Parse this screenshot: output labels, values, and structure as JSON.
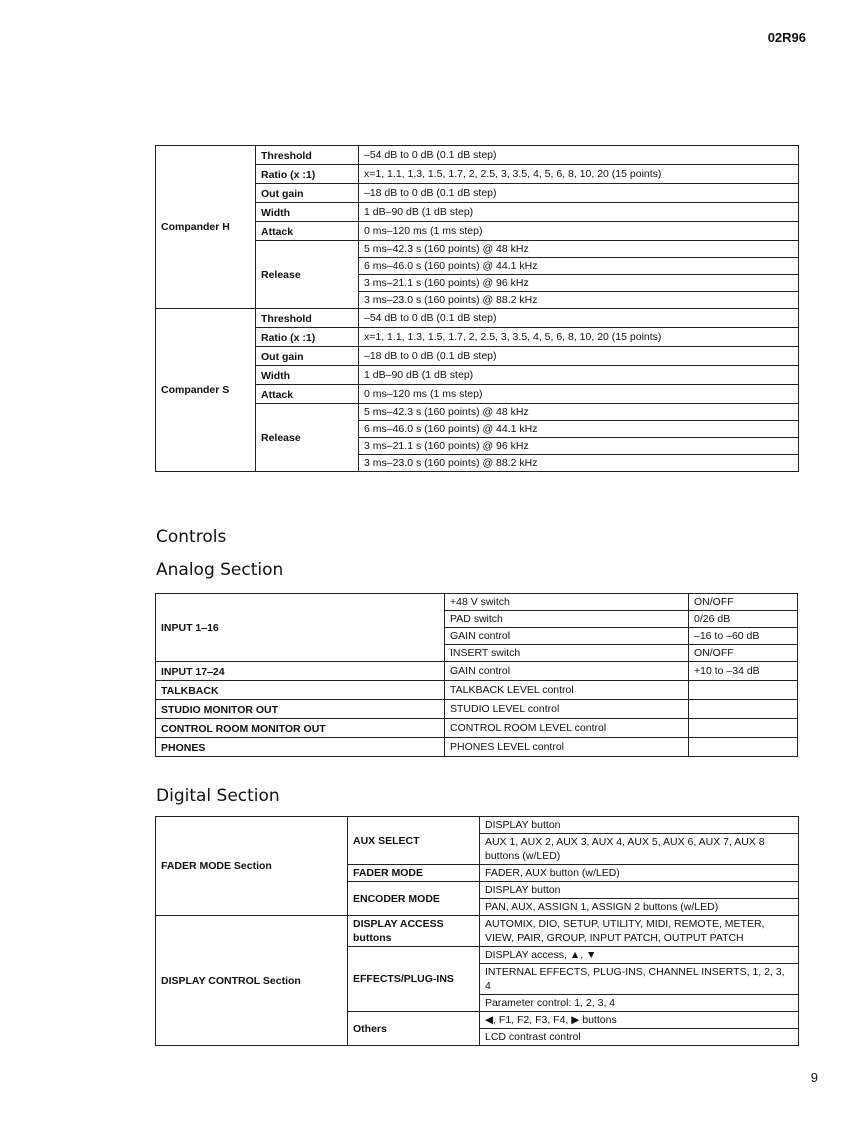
{
  "header": {
    "model": "02R96"
  },
  "page_number": "9",
  "compander": [
    {
      "name": "Compander H",
      "params": [
        {
          "label": "Threshold",
          "values": [
            "‒54 dB to 0 dB (0.1 dB step)"
          ]
        },
        {
          "label": "Ratio (x :1)",
          "values": [
            "x=1, 1.1, 1.3, 1.5, 1.7, 2, 2.5, 3, 3.5, 4, 5, 6, 8, 10, 20 (15 points)"
          ]
        },
        {
          "label": "Out gain",
          "values": [
            "‒18 dB to 0 dB (0.1 dB step)"
          ]
        },
        {
          "label": "Width",
          "values": [
            "1 dB‒90 dB (1 dB step)"
          ]
        },
        {
          "label": "Attack",
          "values": [
            "0 ms‒120 ms (1 ms step)"
          ]
        },
        {
          "label": "Release",
          "values": [
            "5 ms‒42.3 s (160 points) @ 48 kHz",
            "6 ms‒46.0 s (160 points) @ 44.1 kHz",
            "3 ms‒21.1 s (160 points) @ 96 kHz",
            "3 ms‒23.0 s (160 points) @ 88.2 kHz"
          ]
        }
      ]
    },
    {
      "name": "Compander S",
      "params": [
        {
          "label": "Threshold",
          "values": [
            "‒54 dB to 0 dB (0.1 dB step)"
          ]
        },
        {
          "label": "Ratio (x :1)",
          "values": [
            "x=1, 1.1, 1.3, 1.5, 1.7, 2, 2.5, 3, 3.5, 4, 5, 6, 8, 10, 20 (15 points)"
          ]
        },
        {
          "label": "Out gain",
          "values": [
            "‒18 dB to 0 dB (0.1 dB step)"
          ]
        },
        {
          "label": "Width",
          "values": [
            "1 dB‒90 dB (1 dB step)"
          ]
        },
        {
          "label": "Attack",
          "values": [
            "0 ms‒120 ms (1 ms step)"
          ]
        },
        {
          "label": "Release",
          "values": [
            "5 ms‒42.3 s (160 points) @ 48 kHz",
            "6 ms‒46.0 s (160 points) @ 44.1 kHz",
            "3 ms‒21.1 s (160 points) @ 96 kHz",
            "3 ms‒23.0 s (160 points) @ 88.2 kHz"
          ]
        }
      ]
    }
  ],
  "headings": {
    "controls": "Controls",
    "analog": "Analog Section",
    "digital": "Digital Section"
  },
  "analog": [
    {
      "label": "INPUT 1‒16",
      "items": [
        {
          "control": "+48 V switch",
          "value": "ON/OFF"
        },
        {
          "control": "PAD switch",
          "value": "0/26 dB"
        },
        {
          "control": "GAIN control",
          "value": "‒16 to ‒60 dB"
        },
        {
          "control": "INSERT switch",
          "value": "ON/OFF"
        }
      ]
    },
    {
      "label": "INPUT 17‒24",
      "items": [
        {
          "control": "GAIN control",
          "value": "+10 to ‒34 dB"
        }
      ]
    },
    {
      "label": "TALKBACK",
      "items": [
        {
          "control": "TALKBACK LEVEL control",
          "value": ""
        }
      ]
    },
    {
      "label": "STUDIO MONITOR OUT",
      "items": [
        {
          "control": "STUDIO LEVEL control",
          "value": ""
        }
      ]
    },
    {
      "label": "CONTROL ROOM MONITOR OUT",
      "items": [
        {
          "control": "CONTROL ROOM LEVEL control",
          "value": ""
        }
      ]
    },
    {
      "label": "PHONES",
      "items": [
        {
          "control": "PHONES LEVEL control",
          "value": ""
        }
      ]
    }
  ],
  "digital": [
    {
      "section": "FADER MODE Section",
      "groups": [
        {
          "label": "AUX SELECT",
          "items": [
            "DISPLAY button",
            "AUX 1, AUX 2, AUX 3, AUX 4, AUX 5, AUX 6, AUX 7, AUX 8 buttons (w/LED)"
          ]
        },
        {
          "label": "FADER MODE",
          "items": [
            "FADER, AUX button (w/LED)"
          ]
        },
        {
          "label": "ENCODER MODE",
          "items": [
            "DISPLAY button",
            "PAN, AUX, ASSIGN 1, ASSIGN 2 buttons (w/LED)"
          ]
        }
      ]
    },
    {
      "section": "DISPLAY CONTROL Section",
      "groups": [
        {
          "label": "DISPLAY ACCESS buttons",
          "items": [
            "AUTOMIX, DIO, SETUP, UTILITY, MIDI, REMOTE, METER, VIEW, PAIR, GROUP, INPUT PATCH, OUTPUT PATCH"
          ]
        },
        {
          "label": "EFFECTS/PLUG-INS",
          "items": [
            "DISPLAY access, ▲, ▼",
            "INTERNAL EFFECTS, PLUG-INS, CHANNEL INSERTS, 1, 2, 3, 4",
            "Parameter control: 1, 2, 3, 4"
          ]
        },
        {
          "label": "Others",
          "items": [
            "◀, F1, F2, F3, F4, ▶ buttons",
            "LCD contrast control"
          ]
        }
      ]
    }
  ]
}
